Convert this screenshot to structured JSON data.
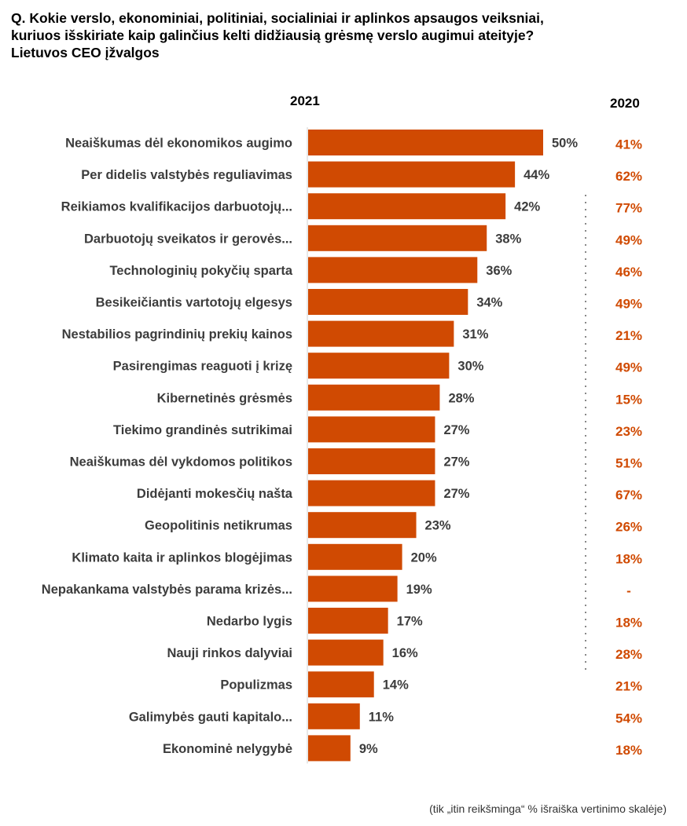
{
  "title_lines": [
    "Q. Kokie verslo, ekonominiai, politiniai, socialiniai ir aplinkos apsaugos veiksniai,",
    "kuriuos išskiriate kaip galinčius kelti didžiausią grėsmę verslo augimui ateityje?",
    "Lietuvos CEO įžvalgos"
  ],
  "footnote": "(tik „itin reikšminga“ % išraiška vertinimo skalėje)",
  "colors": {
    "bar": "#D04A02",
    "label": "#3C3C3C",
    "value_2020": "#D04A02"
  },
  "chart_data": {
    "type": "bar",
    "orientation": "horizontal",
    "unit": "%",
    "columns": [
      "2021",
      "2020"
    ],
    "categories": [
      "Neaiškumas dėl ekonomikos augimo",
      "Per didelis valstybės reguliavimas",
      "Reikiamos kvalifikacijos darbuotojų...",
      "Darbuotojų sveikatos ir gerovės...",
      "Technologinių pokyčių sparta",
      "Besikeičiantis vartotojų elgesys",
      "Nestabilios pagrindinių prekių kainos",
      "Pasirengimas reaguoti į krizę",
      "Kibernetinės grėsmės",
      "Tiekimo grandinės sutrikimai",
      "Neaiškumas dėl vykdomos politikos",
      "Didėjanti mokesčių našta",
      "Geopolitinis netikrumas",
      "Klimato kaita ir aplinkos blogėjimas",
      "Nepakankama valstybės parama krizės...",
      "Nedarbo lygis",
      "Nauji rinkos dalyviai",
      "Populizmas",
      "Galimybės gauti kapitalo...",
      "Ekonominė nelygybė"
    ],
    "series": [
      {
        "name": "2021",
        "values": [
          50,
          44,
          42,
          38,
          36,
          34,
          31,
          30,
          28,
          27,
          27,
          27,
          23,
          20,
          19,
          17,
          16,
          14,
          11,
          9
        ]
      },
      {
        "name": "2020",
        "values": [
          "41%",
          "62%",
          "77%",
          "49%",
          "46%",
          "49%",
          "21%",
          "49%",
          "15%",
          "23%",
          "51%",
          "67%",
          "26%",
          "18%",
          "-",
          "18%",
          "28%",
          "21%",
          "54%",
          "18%"
        ]
      }
    ],
    "data_labels_2021": [
      "50%",
      "44%",
      "42%",
      "38%",
      "36%",
      "34%",
      "31%",
      "30%",
      "28%",
      "27%",
      "27%",
      "27%",
      "23%",
      "20%",
      "19%",
      "17%",
      "16%",
      "14%",
      "11%",
      "9%"
    ],
    "xlim": [
      0,
      50
    ],
    "grid": false
  }
}
